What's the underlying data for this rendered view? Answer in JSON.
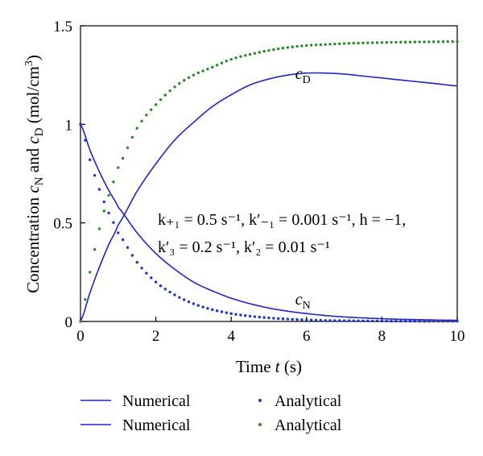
{
  "chart_data": {
    "type": "line",
    "xlabel": "Time t (s)",
    "xlabel_parts": {
      "pre": "Time ",
      "var": "t",
      "post": " (s)"
    },
    "ylabel": "Concentration cN and cD (mol/cm3)",
    "ylabel_parts": {
      "pre": "Concentration ",
      "c1": "c",
      "s1": "N",
      "mid": " and ",
      "c2": "c",
      "s2": "D",
      "post": " (mol/cm",
      "sup": "3",
      "close": ")"
    },
    "xlim": [
      0,
      10
    ],
    "ylim": [
      0,
      1.5
    ],
    "x_ticks": [
      "0",
      "2",
      "4",
      "6",
      "8",
      "10"
    ],
    "y_ticks": [
      "0",
      "0.5",
      "1",
      "1.5"
    ],
    "grid": false,
    "legend_position": "bottom",
    "colors": {
      "numerical": "#2222cc",
      "analytical_n": "#2233cc",
      "analytical_d": "#2a8a2a"
    },
    "curve_labels": {
      "cD": {
        "text": "c",
        "sub": "D",
        "x": 5.7,
        "y": 1.23
      },
      "cN": {
        "text": "c",
        "sub": "N",
        "x": 5.7,
        "y": 0.085
      }
    },
    "annotation": {
      "line1": "k₊₁ = 0.5 s⁻¹, k′₋₁ = 0.001 s⁻¹, h = −1,",
      "line2": "k′₃ = 0.2 s⁻¹, k′₂ = 0.01 s⁻¹"
    },
    "series": [
      {
        "name": "Numerical",
        "style": "line",
        "x": [
          0,
          0.25,
          0.5,
          0.75,
          1,
          1.5,
          2,
          2.5,
          3,
          3.5,
          4,
          4.5,
          5,
          5.5,
          6,
          6.5,
          7,
          7.5,
          8,
          8.5,
          9,
          9.5,
          10
        ],
        "values": [
          0,
          0.145,
          0.275,
          0.39,
          0.49,
          0.66,
          0.8,
          0.92,
          1.01,
          1.09,
          1.15,
          1.2,
          1.23,
          1.25,
          1.26,
          1.26,
          1.255,
          1.245,
          1.235,
          1.225,
          1.215,
          1.205,
          1.195
        ]
      },
      {
        "name": "Numerical",
        "style": "line",
        "x": [
          0,
          0.25,
          0.5,
          0.75,
          1,
          1.5,
          2,
          2.5,
          3,
          3.5,
          4,
          4.5,
          5,
          5.5,
          6,
          6.5,
          7,
          7.5,
          8,
          8.5,
          9,
          9.5,
          10
        ],
        "values": [
          1,
          0.87,
          0.76,
          0.665,
          0.58,
          0.45,
          0.345,
          0.265,
          0.2,
          0.155,
          0.118,
          0.09,
          0.068,
          0.052,
          0.04,
          0.03,
          0.023,
          0.018,
          0.014,
          0.011,
          0.009,
          0.007,
          0.006
        ]
      },
      {
        "name": "Analytical",
        "style": "dots",
        "x": [
          0,
          0.25,
          0.5,
          0.75,
          1,
          1.5,
          2,
          2.5,
          3,
          3.5,
          4,
          4.5,
          5,
          5.5,
          6,
          6.5,
          7,
          7.5,
          8,
          8.5,
          9,
          9.5,
          10
        ],
        "values": [
          1,
          0.82,
          0.67,
          0.55,
          0.45,
          0.3,
          0.2,
          0.135,
          0.09,
          0.06,
          0.04,
          0.027,
          0.018,
          0.012,
          0.008,
          0.005,
          0.004,
          0.003,
          0.002,
          0.0015,
          0.001,
          0.001,
          0.001
        ]
      },
      {
        "name": "Analytical",
        "style": "dots",
        "x": [
          0,
          0.25,
          0.5,
          0.75,
          1,
          1.5,
          2,
          2.5,
          3,
          3.5,
          4,
          4.5,
          5,
          5.5,
          6,
          6.5,
          7,
          7.5,
          8,
          8.5,
          9,
          9.5,
          10
        ],
        "values": [
          0,
          0.25,
          0.47,
          0.64,
          0.78,
          0.98,
          1.1,
          1.19,
          1.25,
          1.29,
          1.33,
          1.355,
          1.375,
          1.39,
          1.4,
          1.405,
          1.41,
          1.413,
          1.415,
          1.417,
          1.418,
          1.419,
          1.42
        ]
      }
    ]
  },
  "legend": {
    "items": [
      {
        "label": "Numerical",
        "kind": "line",
        "color": "#2222cc"
      },
      {
        "label": "Analytical",
        "kind": "dots",
        "color": "#2233cc"
      },
      {
        "label": "Numerical",
        "kind": "line",
        "color": "#2222cc"
      },
      {
        "label": "Analytical",
        "kind": "dots",
        "color": "#2a8a2a"
      }
    ]
  }
}
